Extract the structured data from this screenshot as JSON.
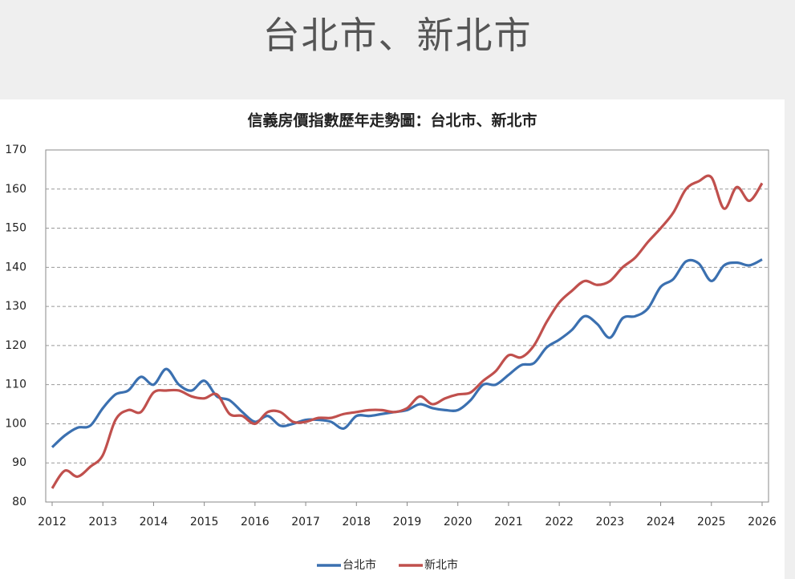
{
  "page_title": "台北市、新北市",
  "chart_data": {
    "type": "line",
    "title": "信義房價指數歷年走勢圖：台北市、新北市",
    "x": [
      2012,
      2012.25,
      2012.5,
      2012.75,
      2013,
      2013.25,
      2013.5,
      2013.75,
      2014,
      2014.25,
      2014.5,
      2014.75,
      2015,
      2015.25,
      2015.5,
      2015.75,
      2016,
      2016.25,
      2016.5,
      2016.75,
      2017,
      2017.25,
      2017.5,
      2017.75,
      2018,
      2018.25,
      2018.5,
      2018.75,
      2019,
      2019.25,
      2019.5,
      2019.75,
      2020,
      2020.25,
      2020.5,
      2020.75,
      2021,
      2021.25,
      2021.5,
      2021.75,
      2022,
      2022.25,
      2022.5,
      2022.75,
      2023,
      2023.25,
      2023.5,
      2023.75,
      2024,
      2024.25,
      2024.5,
      2024.75,
      2025,
      2025.25,
      2025.5,
      2025.75,
      2026
    ],
    "series": [
      {
        "name": "台北市",
        "color": "#3b70b0",
        "values": [
          94,
          97,
          99,
          99.5,
          104,
          107.5,
          108.5,
          112,
          110,
          114,
          110,
          108.5,
          111,
          107,
          106,
          103,
          100.5,
          102,
          99.5,
          100,
          101,
          101,
          100.5,
          98.8,
          102,
          102,
          102.5,
          103,
          103.5,
          105,
          104,
          103.5,
          103.5,
          106,
          110,
          110,
          112.5,
          115,
          115.5,
          119.5,
          121.5,
          124,
          127.5,
          125.5,
          122,
          127,
          127.5,
          129.5,
          135,
          137,
          141.5,
          141,
          136.5,
          140.5,
          141.2,
          140.5,
          142
        ]
      },
      {
        "name": "新北市",
        "color": "#c0504d",
        "values": [
          83.5,
          88,
          86.5,
          89,
          92,
          101,
          103.5,
          103,
          108,
          108.5,
          108.5,
          107,
          106.5,
          107.5,
          102.5,
          102,
          100,
          103,
          103,
          100.5,
          100.5,
          101.5,
          101.5,
          102.5,
          103,
          103.5,
          103.5,
          103,
          104,
          107,
          105,
          106.5,
          107.5,
          108,
          111,
          113.5,
          117.5,
          117,
          120,
          126,
          131,
          134,
          136.5,
          135.5,
          136.5,
          140,
          142.5,
          146.5,
          150,
          154,
          160,
          162,
          163,
          155,
          160.5,
          157,
          161.5
        ]
      }
    ],
    "xlim": [
      2012,
      2026
    ],
    "xticks": [
      2012,
      2013,
      2014,
      2015,
      2016,
      2017,
      2018,
      2019,
      2020,
      2021,
      2022,
      2023,
      2024,
      2025,
      2026
    ],
    "ylim": [
      80,
      170
    ],
    "yticks": [
      80,
      90,
      100,
      110,
      120,
      130,
      140,
      150,
      160,
      170
    ],
    "grid": true,
    "legend": "bottom"
  }
}
